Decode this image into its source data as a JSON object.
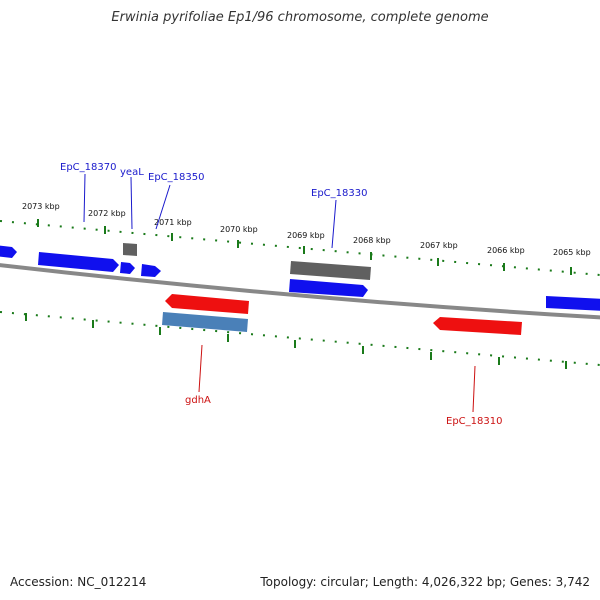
{
  "title": "Erwinia pyrifoliae Ep1/96 chromosome, complete genome",
  "accession": "Accession: NC_012214",
  "topology": "Topology: circular; Length: 4,026,322 bp; Genes: 3,742",
  "kbp_labels": [
    "2073 kbp",
    "2072 kbp",
    "2071 kbp",
    "2070 kbp",
    "2069 kbp",
    "2068 kbp",
    "2067 kbp",
    "2066 kbp",
    "2065 kbp"
  ],
  "genes_top": [
    "EpC_18370",
    "yeaL",
    "EpC_18350",
    "EpC_18330"
  ],
  "genes_bottom": [
    "gdhA",
    "EpC_18310"
  ],
  "colors": {
    "forward": "#1010ee",
    "reverse": "#ee1010",
    "pseudo": "#606060",
    "rna": "#4a80b8",
    "tick": "#1a7a1a",
    "backbone": "#888888"
  }
}
